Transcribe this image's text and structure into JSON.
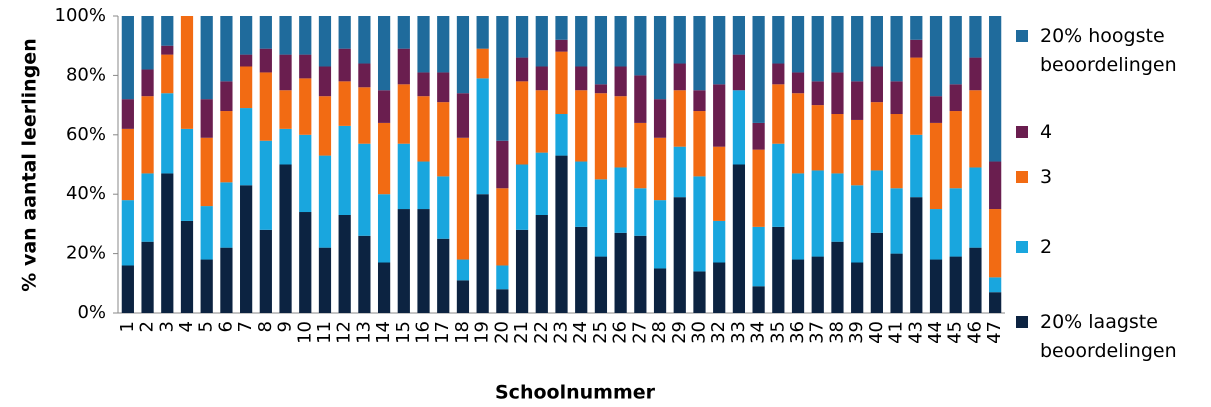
{
  "chart_data": {
    "type": "stacked_bar",
    "x_label": "Schoolnummer",
    "y_label": "% van aantal leerlingen",
    "categories": [
      "1",
      "2",
      "3",
      "4",
      "5",
      "6",
      "7",
      "8",
      "9",
      "10",
      "11",
      "12",
      "13",
      "14",
      "15",
      "16",
      "17",
      "18",
      "19",
      "20",
      "21",
      "22",
      "23",
      "24",
      "25",
      "26",
      "27",
      "28",
      "29",
      "30",
      "32",
      "33",
      "34",
      "35",
      "36",
      "37",
      "38",
      "39",
      "40",
      "41",
      "43",
      "44",
      "45",
      "46",
      "47"
    ],
    "series": [
      {
        "name": "20% laagste beoordelingen",
        "color": "#0c2341",
        "values": [
          16,
          24,
          47,
          31,
          18,
          22,
          43,
          28,
          50,
          34,
          22,
          33,
          26,
          17,
          35,
          35,
          25,
          11,
          40,
          8,
          28,
          33,
          53,
          29,
          19,
          27,
          26,
          15,
          39,
          14,
          17,
          50,
          9,
          29,
          18,
          19,
          24,
          17,
          27,
          20,
          39,
          18,
          19,
          22,
          7
        ]
      },
      {
        "name": "2",
        "color": "#19a6de",
        "values": [
          22,
          23,
          27,
          31,
          18,
          22,
          26,
          30,
          12,
          26,
          31,
          30,
          31,
          23,
          22,
          16,
          21,
          7,
          39,
          8,
          22,
          21,
          14,
          22,
          26,
          22,
          16,
          23,
          17,
          32,
          14,
          25,
          20,
          28,
          29,
          29,
          23,
          26,
          21,
          22,
          21,
          17,
          23,
          27,
          5
        ]
      },
      {
        "name": "3",
        "color": "#f26b13",
        "values": [
          24,
          26,
          13,
          38,
          23,
          24,
          14,
          23,
          13,
          19,
          20,
          15,
          19,
          24,
          20,
          22,
          25,
          41,
          10,
          26,
          28,
          21,
          21,
          24,
          29,
          24,
          22,
          21,
          19,
          22,
          25,
          0,
          26,
          20,
          27,
          22,
          20,
          22,
          23,
          25,
          26,
          29,
          26,
          26,
          23
        ]
      },
      {
        "name": "4",
        "color": "#6a1e4f",
        "values": [
          10,
          9,
          3,
          0,
          13,
          10,
          4,
          8,
          12,
          8,
          10,
          11,
          8,
          11,
          12,
          8,
          10,
          15,
          0,
          16,
          8,
          8,
          4,
          8,
          3,
          10,
          16,
          13,
          9,
          7,
          21,
          12,
          9,
          7,
          7,
          8,
          14,
          13,
          12,
          11,
          6,
          9,
          9,
          11,
          16
        ]
      },
      {
        "name": "20% hoogste beoordelingen",
        "color": "#1f6b9c",
        "values": [
          28,
          18,
          10,
          0,
          28,
          22,
          13,
          11,
          13,
          13,
          17,
          11,
          16,
          25,
          11,
          19,
          19,
          26,
          11,
          42,
          14,
          17,
          8,
          17,
          23,
          17,
          20,
          28,
          16,
          25,
          23,
          13,
          36,
          16,
          19,
          22,
          19,
          22,
          17,
          22,
          8,
          27,
          23,
          14,
          49
        ]
      }
    ],
    "ylim": [
      0,
      100
    ],
    "yticks": [
      {
        "value": 0,
        "label": "0%"
      },
      {
        "value": 20,
        "label": "20%"
      },
      {
        "value": 40,
        "label": "40%"
      },
      {
        "value": 60,
        "label": "60%"
      },
      {
        "value": 80,
        "label": "80%"
      },
      {
        "value": 100,
        "label": "100%"
      }
    ],
    "legend": "right"
  }
}
